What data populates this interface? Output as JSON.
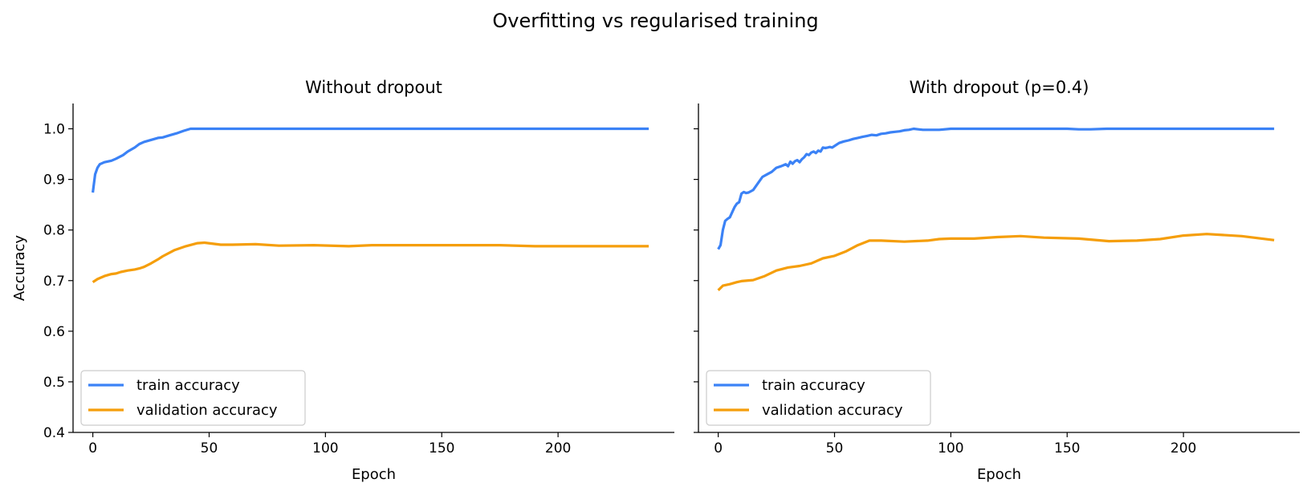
{
  "figure_title": "Overfitting vs regularised training",
  "colors": {
    "train": "#3b82f6",
    "validation": "#f59e0b",
    "axis": "#000000",
    "legend_border": "#cccccc"
  },
  "chart_data": [
    {
      "type": "line",
      "title": "Without dropout",
      "xlabel": "Epoch",
      "ylabel": "Accuracy",
      "xlim": [
        -8.5,
        250
      ],
      "ylim": [
        0.4,
        1.05
      ],
      "xticks": [
        0,
        50,
        100,
        150,
        200
      ],
      "yticks": [
        0.4,
        0.5,
        0.6,
        0.7,
        0.8,
        0.9,
        1.0
      ],
      "grid": false,
      "legend_position": "lower-left",
      "series": [
        {
          "name": "train accuracy",
          "x": [
            0,
            1,
            2,
            3,
            5,
            8,
            10,
            13,
            15,
            18,
            20,
            22,
            25,
            28,
            30,
            33,
            36,
            39,
            42,
            45,
            60,
            80,
            100,
            120,
            140,
            160,
            180,
            200,
            220,
            239
          ],
          "y": [
            0.874,
            0.91,
            0.923,
            0.93,
            0.934,
            0.937,
            0.941,
            0.948,
            0.955,
            0.963,
            0.97,
            0.974,
            0.978,
            0.982,
            0.983,
            0.987,
            0.991,
            0.996,
            1.0,
            1.0,
            1.0,
            1.0,
            1.0,
            1.0,
            1.0,
            1.0,
            1.0,
            1.0,
            1.0,
            1.0
          ]
        },
        {
          "name": "validation accuracy",
          "x": [
            0,
            2,
            5,
            8,
            10,
            12,
            15,
            18,
            20,
            22,
            25,
            28,
            30,
            35,
            40,
            45,
            48,
            55,
            60,
            70,
            80,
            95,
            110,
            120,
            130,
            150,
            175,
            190,
            210,
            239
          ],
          "y": [
            0.697,
            0.703,
            0.709,
            0.713,
            0.714,
            0.717,
            0.72,
            0.722,
            0.724,
            0.727,
            0.734,
            0.742,
            0.748,
            0.76,
            0.768,
            0.774,
            0.775,
            0.771,
            0.771,
            0.772,
            0.769,
            0.77,
            0.768,
            0.77,
            0.77,
            0.77,
            0.77,
            0.768,
            0.768,
            0.768
          ]
        }
      ]
    },
    {
      "type": "line",
      "title": "With dropout (p=0.4)",
      "xlabel": "Epoch",
      "ylabel": "",
      "xlim": [
        -8.5,
        250
      ],
      "ylim": [
        0.4,
        1.05
      ],
      "xticks": [
        0,
        50,
        100,
        150,
        200
      ],
      "yticks": [
        0.4,
        0.5,
        0.6,
        0.7,
        0.8,
        0.9,
        1.0
      ],
      "grid": false,
      "legend_position": "lower-left",
      "series": [
        {
          "name": "train accuracy",
          "x": [
            0,
            1,
            2,
            3,
            4,
            5,
            6,
            7,
            8,
            9,
            10,
            11,
            12,
            13,
            15,
            17,
            19,
            21,
            23,
            25,
            27,
            28,
            29,
            30,
            31,
            32,
            33,
            34,
            35,
            36,
            37,
            38,
            39,
            40,
            41,
            42,
            43,
            44,
            45,
            46,
            47,
            48,
            49,
            50,
            52,
            54,
            56,
            58,
            60,
            62,
            64,
            66,
            68,
            70,
            72,
            74,
            76,
            78,
            80,
            82,
            84,
            86,
            88,
            90,
            95,
            100,
            102,
            110,
            120,
            130,
            140,
            150,
            155,
            160,
            167,
            170,
            180,
            200,
            220,
            239
          ],
          "y": [
            0.762,
            0.77,
            0.8,
            0.818,
            0.822,
            0.825,
            0.835,
            0.845,
            0.852,
            0.855,
            0.872,
            0.875,
            0.873,
            0.874,
            0.879,
            0.892,
            0.905,
            0.91,
            0.915,
            0.923,
            0.926,
            0.928,
            0.93,
            0.926,
            0.935,
            0.931,
            0.936,
            0.938,
            0.934,
            0.94,
            0.944,
            0.95,
            0.948,
            0.953,
            0.955,
            0.952,
            0.957,
            0.955,
            0.963,
            0.962,
            0.963,
            0.964,
            0.963,
            0.966,
            0.972,
            0.975,
            0.977,
            0.98,
            0.982,
            0.984,
            0.986,
            0.988,
            0.987,
            0.99,
            0.991,
            0.993,
            0.994,
            0.995,
            0.997,
            0.998,
            1.0,
            0.999,
            0.998,
            0.998,
            0.998,
            1.0,
            1.0,
            1.0,
            1.0,
            1.0,
            1.0,
            1.0,
            0.999,
            0.999,
            1.0,
            1.0,
            1.0,
            1.0,
            1.0,
            1.0
          ]
        },
        {
          "name": "validation accuracy",
          "x": [
            0,
            2,
            5,
            8,
            10,
            15,
            20,
            25,
            30,
            35,
            40,
            45,
            50,
            55,
            60,
            65,
            70,
            80,
            90,
            95,
            100,
            110,
            120,
            130,
            140,
            155,
            168,
            180,
            190,
            200,
            210,
            225,
            239
          ],
          "y": [
            0.681,
            0.69,
            0.693,
            0.697,
            0.699,
            0.701,
            0.709,
            0.72,
            0.726,
            0.729,
            0.734,
            0.744,
            0.749,
            0.758,
            0.77,
            0.779,
            0.779,
            0.777,
            0.779,
            0.782,
            0.783,
            0.783,
            0.786,
            0.788,
            0.785,
            0.783,
            0.778,
            0.779,
            0.782,
            0.789,
            0.792,
            0.788,
            0.78
          ]
        }
      ]
    }
  ]
}
